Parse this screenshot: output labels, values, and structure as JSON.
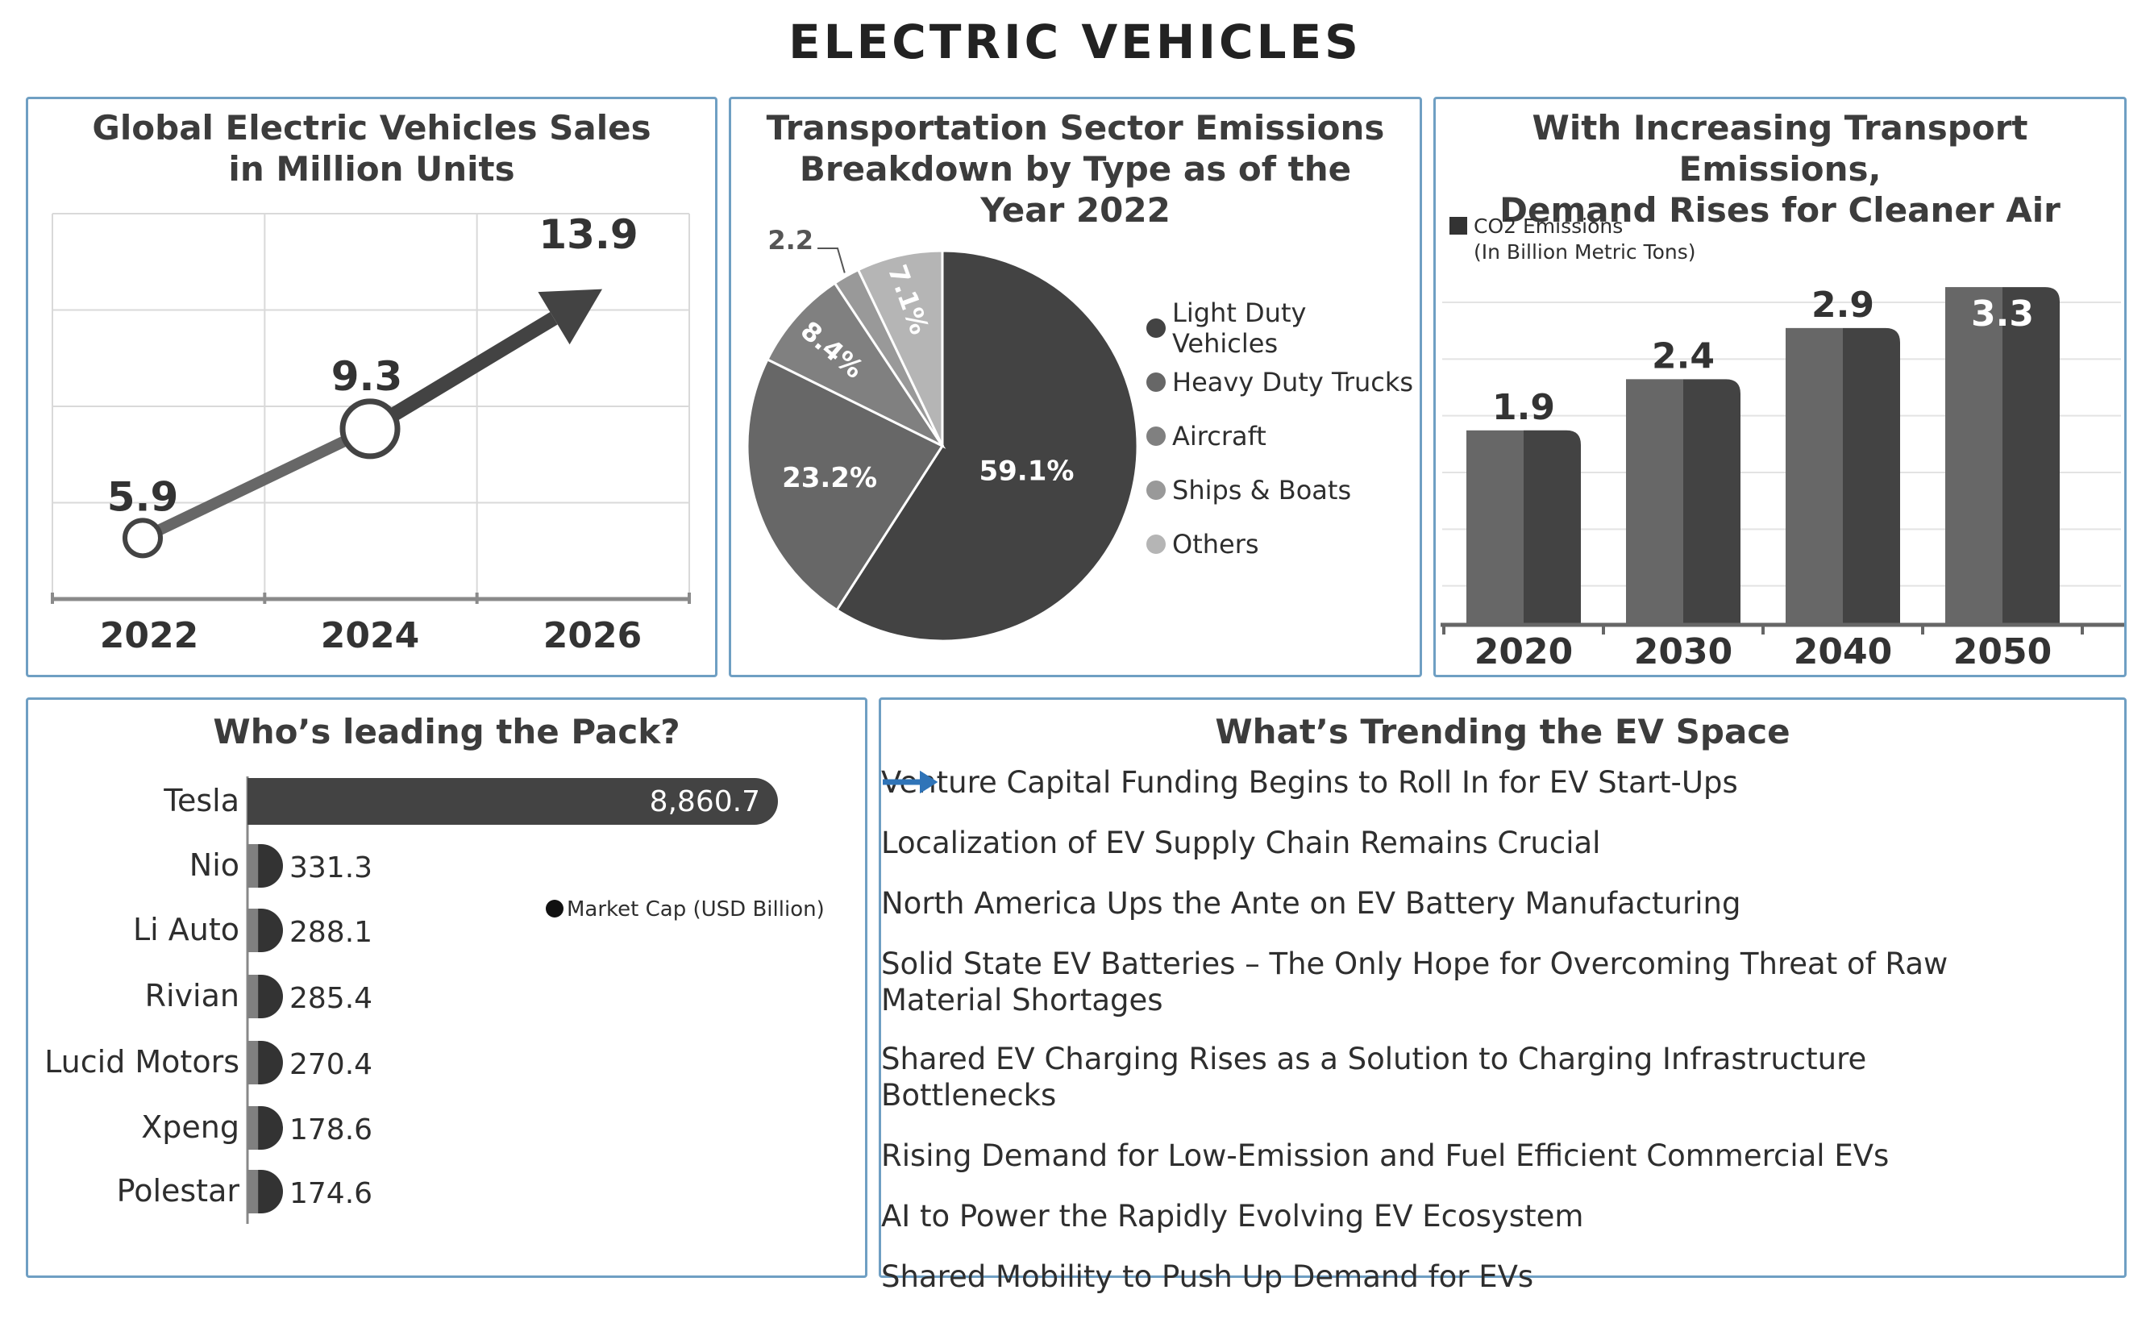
{
  "page_title": "ELECTRIC VEHICLES",
  "colors": {
    "border": "#6f9fc3",
    "arrow_blue": "#2f74b8",
    "dark": "#434343",
    "darker": "#333333",
    "mid": "#676767",
    "gray1": "#808080",
    "gray2": "#999999",
    "gray3": "#b5b5b5"
  },
  "panels": {
    "sales": {
      "title_lines": [
        "Global Electric Vehicles Sales",
        "in Million Units"
      ]
    },
    "emissions_pie": {
      "title_lines": [
        "Transportation Sector Emissions",
        "Breakdown by Type as of the",
        "Year 2022"
      ]
    },
    "co2": {
      "title_lines": [
        "With Increasing Transport Emissions,",
        "Demand Rises for Cleaner Air"
      ],
      "legend_lines": [
        "CO2 Emissions",
        "(In Billion Metric Tons)"
      ]
    },
    "leaders": {
      "title": "Who’s leading the Pack?",
      "legend": "Market Cap (USD Billion)"
    },
    "trends": {
      "title": "What’s Trending the EV Space",
      "icon": "arrow-right-icon",
      "items": [
        [
          "Venture Capital Funding Begins to Roll In for EV Start-Ups"
        ],
        [
          "Localization of EV Supply Chain Remains Crucial"
        ],
        [
          "North America Ups the Ante on EV Battery Manufacturing"
        ],
        [
          "Solid State EV Batteries – The Only Hope for Overcoming Threat of Raw",
          "Material Shortages"
        ],
        [
          "Shared EV Charging Rises as a Solution to Charging Infrastructure Bottlenecks"
        ],
        [
          "Rising Demand for Low-Emission and Fuel Efficient Commercial EVs"
        ],
        [
          "AI to Power the Rapidly Evolving EV Ecosystem"
        ],
        [
          "Shared Mobility to Push Up Demand for EVs"
        ]
      ]
    }
  },
  "chart_data": [
    {
      "id": "sales",
      "type": "line",
      "title": "Global Electric Vehicles Sales in Million Units",
      "x": [
        "2022",
        "2024",
        "2026"
      ],
      "values": [
        5.9,
        9.3,
        13.9
      ],
      "labels": [
        "5.9",
        "9.3",
        "13.9"
      ],
      "ylim": [
        4,
        16
      ],
      "grid": true
    },
    {
      "id": "emissions",
      "type": "pie",
      "title": "Transportation Sector Emissions Breakdown by Type as of the Year 2022",
      "slices": [
        {
          "name": "Light Duty Vehicles",
          "value": 59.1,
          "label": "59.1%",
          "color": "#434343"
        },
        {
          "name": "Heavy Duty Trucks",
          "value": 23.2,
          "label": "23.2%",
          "color": "#676767"
        },
        {
          "name": "Aircraft",
          "value": 8.4,
          "label": "8.4%",
          "color": "#808080"
        },
        {
          "name": "Ships & Boats",
          "value": 2.2,
          "label": "2.2",
          "color": "#999999"
        },
        {
          "name": "Others",
          "value": 7.1,
          "label": "7.1%",
          "color": "#b5b5b5"
        }
      ],
      "legend_position": "right"
    },
    {
      "id": "co2",
      "type": "bar",
      "title": "With Increasing Transport Emissions, Demand Rises for Cleaner Air",
      "categories": [
        "2020",
        "2030",
        "2040",
        "2050"
      ],
      "values": [
        1.9,
        2.4,
        2.9,
        3.3
      ],
      "labels": [
        "1.9",
        "2.4",
        "2.9",
        "3.3"
      ],
      "series_name": "CO2 Emissions (In Billion Metric Tons)",
      "ylim": [
        0,
        3.6
      ],
      "grid": true,
      "legend_position": "top-left"
    },
    {
      "id": "leaders",
      "type": "bar",
      "orientation": "horizontal",
      "title": "Who’s leading the Pack?",
      "categories": [
        "Tesla",
        "Nio",
        "Li Auto",
        "Rivian",
        "Lucid Motors",
        "Xpeng",
        "Polestar"
      ],
      "values": [
        8860.7,
        331.3,
        288.1,
        285.4,
        270.4,
        178.6,
        174.6
      ],
      "labels": [
        "8,860.7",
        "331.3",
        "288.1",
        "285.4",
        "270.4",
        "178.6",
        "174.6"
      ],
      "series_name": "Market Cap (USD Billion)",
      "legend_position": "right"
    }
  ]
}
